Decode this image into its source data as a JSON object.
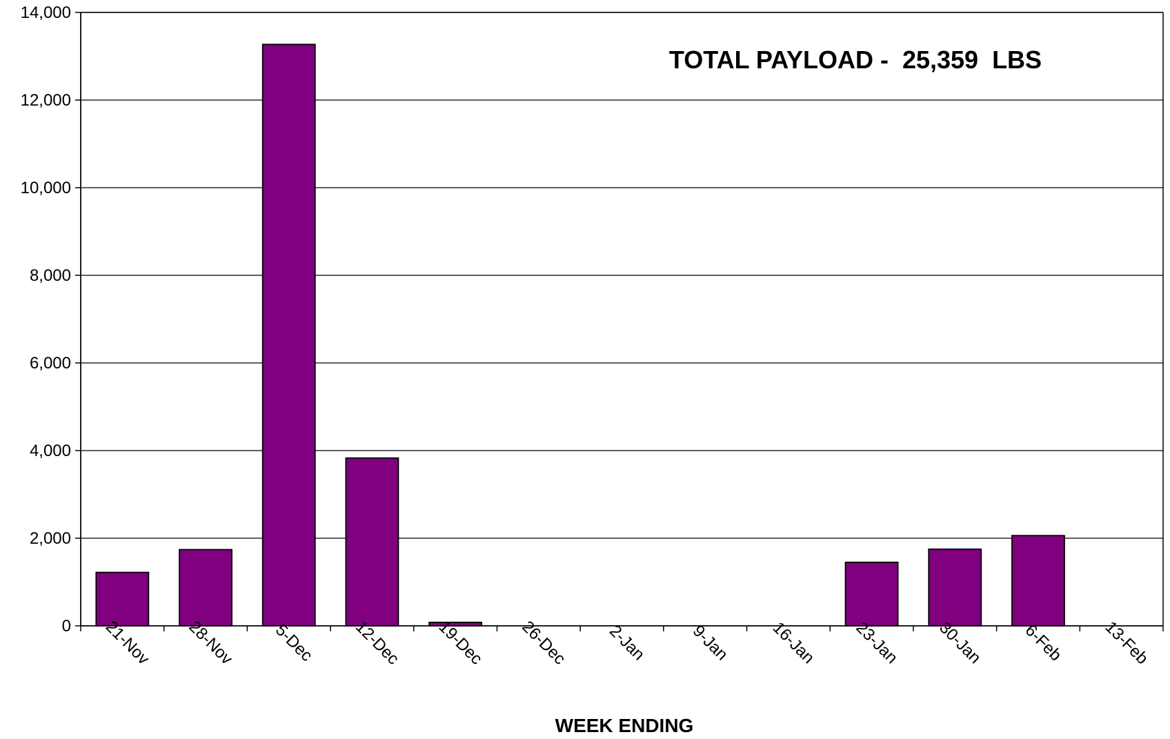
{
  "chart_data": {
    "type": "bar",
    "title": "",
    "annotation": "TOTAL PAYLOAD -  25,359  LBS",
    "xlabel": "WEEK ENDING",
    "ylabel": "",
    "ylim": [
      0,
      14000
    ],
    "yticks": [
      0,
      2000,
      4000,
      6000,
      8000,
      10000,
      12000,
      14000
    ],
    "ytick_labels": [
      "0",
      "2,000",
      "4,000",
      "6,000",
      "8,000",
      "10,000",
      "12,000",
      "14,000"
    ],
    "categories": [
      "21-Nov",
      "28-Nov",
      "5-Dec",
      "12-Dec",
      "19-Dec",
      "26-Dec",
      "2-Jan",
      "9-Jan",
      "16-Jan",
      "23-Jan",
      "30-Jan",
      "6-Feb",
      "13-Feb"
    ],
    "values": [
      1220,
      1740,
      13270,
      3830,
      80,
      0,
      0,
      0,
      0,
      1450,
      1750,
      2060,
      0
    ],
    "grid": true,
    "legend": "none",
    "colors": {
      "bar": "#800080",
      "grid": "#000000",
      "axis": "#000000"
    }
  }
}
